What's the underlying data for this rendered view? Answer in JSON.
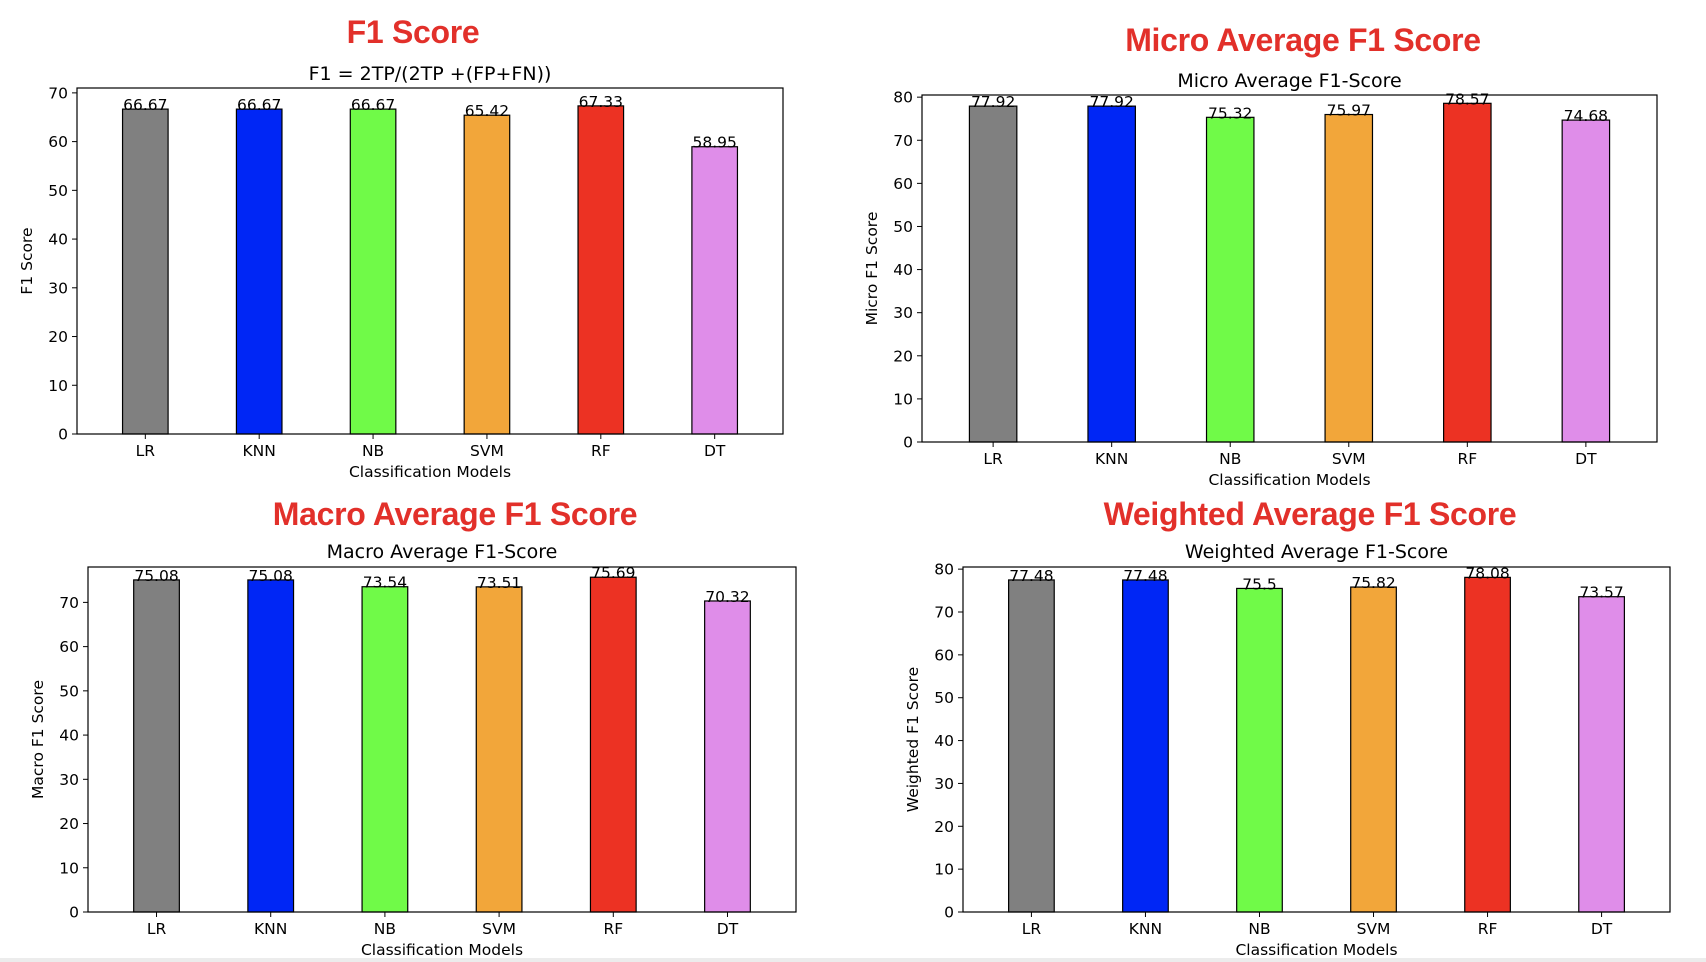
{
  "headlines": {
    "f1": "F1 Score",
    "micro": "Micro Average F1 Score",
    "macro": "Macro Average F1 Score",
    "weighted": "Weighted Average F1 Score"
  },
  "colors": {
    "headline": "#e2302a",
    "bars": [
      "#808080",
      "#0026f5",
      "#70fa48",
      "#f2a63a",
      "#ec3223",
      "#df8de9"
    ],
    "edge": "#000000"
  },
  "chart_data": [
    {
      "id": "f1",
      "type": "bar",
      "title": "F1 = 2TP/(2TP +(FP+FN))",
      "xlabel": "Classification Models",
      "ylabel": "F1 Score",
      "categories": [
        "LR",
        "KNN",
        "NB",
        "SVM",
        "RF",
        "DT"
      ],
      "values": [
        66.67,
        66.67,
        66.67,
        65.42,
        67.33,
        58.95
      ],
      "value_labels": [
        "66.67",
        "66.67",
        "66.67",
        "65.42",
        "67.33",
        "58.95"
      ],
      "ylim": [
        0,
        71
      ],
      "yticks": [
        0,
        10,
        20,
        30,
        40,
        50,
        60,
        70
      ],
      "grid": false,
      "legend": "none"
    },
    {
      "id": "micro",
      "type": "bar",
      "title": "Micro Average F1-Score",
      "xlabel": "Classification Models",
      "ylabel": "Micro F1 Score",
      "categories": [
        "LR",
        "KNN",
        "NB",
        "SVM",
        "RF",
        "DT"
      ],
      "values": [
        77.92,
        77.92,
        75.32,
        75.97,
        78.57,
        74.68
      ],
      "value_labels": [
        "77.92",
        "77.92",
        "75.32",
        "75.97",
        "78.57",
        "74.68"
      ],
      "ylim": [
        0,
        80.5
      ],
      "yticks": [
        0,
        10,
        20,
        30,
        40,
        50,
        60,
        70,
        80
      ],
      "grid": false,
      "legend": "none"
    },
    {
      "id": "macro",
      "type": "bar",
      "title": "Macro Average F1-Score",
      "xlabel": "Classification Models",
      "ylabel": "Macro F1 Score",
      "categories": [
        "LR",
        "KNN",
        "NB",
        "SVM",
        "RF",
        "DT"
      ],
      "values": [
        75.08,
        75.08,
        73.54,
        73.51,
        75.69,
        70.32
      ],
      "value_labels": [
        "75.08",
        "75.08",
        "73.54",
        "73.51",
        "75.69",
        "70.32"
      ],
      "ylim": [
        0,
        78
      ],
      "yticks": [
        0,
        10,
        20,
        30,
        40,
        50,
        60,
        70
      ],
      "grid": false,
      "legend": "none"
    },
    {
      "id": "weighted",
      "type": "bar",
      "title": "Weighted Average F1-Score",
      "xlabel": "Classification Models",
      "ylabel": "Weighted F1 Score",
      "categories": [
        "LR",
        "KNN",
        "NB",
        "SVM",
        "RF",
        "DT"
      ],
      "values": [
        77.48,
        77.48,
        75.5,
        75.82,
        78.08,
        73.57
      ],
      "value_labels": [
        "77.48",
        "77.48",
        "75.5",
        "75.82",
        "78.08",
        "73.57"
      ],
      "ylim": [
        0,
        80.5
      ],
      "yticks": [
        0,
        10,
        20,
        30,
        40,
        50,
        60,
        70,
        80
      ],
      "grid": false,
      "legend": "none"
    }
  ]
}
